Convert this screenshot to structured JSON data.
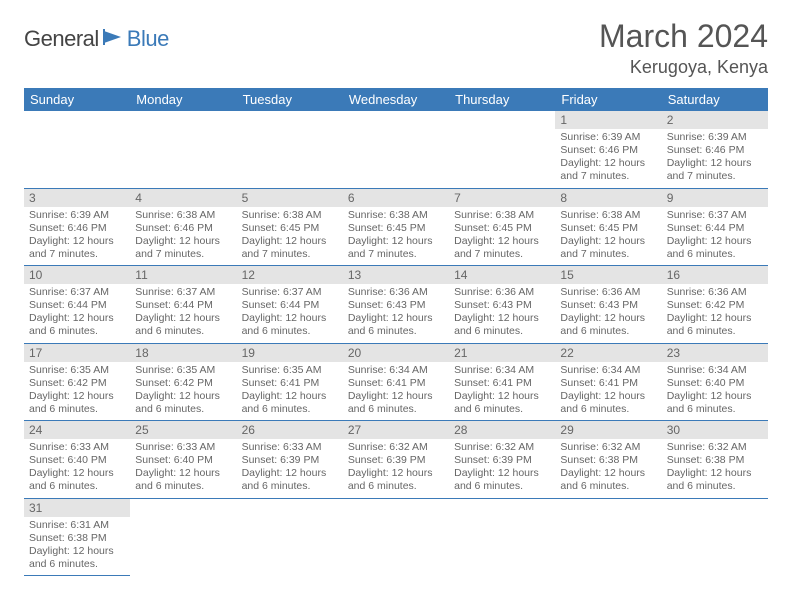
{
  "logo": {
    "part1": "General",
    "part2": "Blue"
  },
  "title": "March 2024",
  "location": "Kerugoya, Kenya",
  "colors": {
    "header_bg": "#3b7ab8",
    "header_text": "#ffffff",
    "daynum_bg": "#e4e4e4",
    "text": "#666666",
    "rule": "#3b7ab8"
  },
  "weekdays": [
    "Sunday",
    "Monday",
    "Tuesday",
    "Wednesday",
    "Thursday",
    "Friday",
    "Saturday"
  ],
  "weeks": [
    [
      null,
      null,
      null,
      null,
      null,
      {
        "n": "1",
        "sr": "6:39 AM",
        "ss": "6:46 PM",
        "dl": "12 hours and 7 minutes."
      },
      {
        "n": "2",
        "sr": "6:39 AM",
        "ss": "6:46 PM",
        "dl": "12 hours and 7 minutes."
      }
    ],
    [
      {
        "n": "3",
        "sr": "6:39 AM",
        "ss": "6:46 PM",
        "dl": "12 hours and 7 minutes."
      },
      {
        "n": "4",
        "sr": "6:38 AM",
        "ss": "6:46 PM",
        "dl": "12 hours and 7 minutes."
      },
      {
        "n": "5",
        "sr": "6:38 AM",
        "ss": "6:45 PM",
        "dl": "12 hours and 7 minutes."
      },
      {
        "n": "6",
        "sr": "6:38 AM",
        "ss": "6:45 PM",
        "dl": "12 hours and 7 minutes."
      },
      {
        "n": "7",
        "sr": "6:38 AM",
        "ss": "6:45 PM",
        "dl": "12 hours and 7 minutes."
      },
      {
        "n": "8",
        "sr": "6:38 AM",
        "ss": "6:45 PM",
        "dl": "12 hours and 7 minutes."
      },
      {
        "n": "9",
        "sr": "6:37 AM",
        "ss": "6:44 PM",
        "dl": "12 hours and 6 minutes."
      }
    ],
    [
      {
        "n": "10",
        "sr": "6:37 AM",
        "ss": "6:44 PM",
        "dl": "12 hours and 6 minutes."
      },
      {
        "n": "11",
        "sr": "6:37 AM",
        "ss": "6:44 PM",
        "dl": "12 hours and 6 minutes."
      },
      {
        "n": "12",
        "sr": "6:37 AM",
        "ss": "6:44 PM",
        "dl": "12 hours and 6 minutes."
      },
      {
        "n": "13",
        "sr": "6:36 AM",
        "ss": "6:43 PM",
        "dl": "12 hours and 6 minutes."
      },
      {
        "n": "14",
        "sr": "6:36 AM",
        "ss": "6:43 PM",
        "dl": "12 hours and 6 minutes."
      },
      {
        "n": "15",
        "sr": "6:36 AM",
        "ss": "6:43 PM",
        "dl": "12 hours and 6 minutes."
      },
      {
        "n": "16",
        "sr": "6:36 AM",
        "ss": "6:42 PM",
        "dl": "12 hours and 6 minutes."
      }
    ],
    [
      {
        "n": "17",
        "sr": "6:35 AM",
        "ss": "6:42 PM",
        "dl": "12 hours and 6 minutes."
      },
      {
        "n": "18",
        "sr": "6:35 AM",
        "ss": "6:42 PM",
        "dl": "12 hours and 6 minutes."
      },
      {
        "n": "19",
        "sr": "6:35 AM",
        "ss": "6:41 PM",
        "dl": "12 hours and 6 minutes."
      },
      {
        "n": "20",
        "sr": "6:34 AM",
        "ss": "6:41 PM",
        "dl": "12 hours and 6 minutes."
      },
      {
        "n": "21",
        "sr": "6:34 AM",
        "ss": "6:41 PM",
        "dl": "12 hours and 6 minutes."
      },
      {
        "n": "22",
        "sr": "6:34 AM",
        "ss": "6:41 PM",
        "dl": "12 hours and 6 minutes."
      },
      {
        "n": "23",
        "sr": "6:34 AM",
        "ss": "6:40 PM",
        "dl": "12 hours and 6 minutes."
      }
    ],
    [
      {
        "n": "24",
        "sr": "6:33 AM",
        "ss": "6:40 PM",
        "dl": "12 hours and 6 minutes."
      },
      {
        "n": "25",
        "sr": "6:33 AM",
        "ss": "6:40 PM",
        "dl": "12 hours and 6 minutes."
      },
      {
        "n": "26",
        "sr": "6:33 AM",
        "ss": "6:39 PM",
        "dl": "12 hours and 6 minutes."
      },
      {
        "n": "27",
        "sr": "6:32 AM",
        "ss": "6:39 PM",
        "dl": "12 hours and 6 minutes."
      },
      {
        "n": "28",
        "sr": "6:32 AM",
        "ss": "6:39 PM",
        "dl": "12 hours and 6 minutes."
      },
      {
        "n": "29",
        "sr": "6:32 AM",
        "ss": "6:38 PM",
        "dl": "12 hours and 6 minutes."
      },
      {
        "n": "30",
        "sr": "6:32 AM",
        "ss": "6:38 PM",
        "dl": "12 hours and 6 minutes."
      }
    ],
    [
      {
        "n": "31",
        "sr": "6:31 AM",
        "ss": "6:38 PM",
        "dl": "12 hours and 6 minutes."
      },
      null,
      null,
      null,
      null,
      null,
      null
    ]
  ],
  "labels": {
    "sunrise": "Sunrise:",
    "sunset": "Sunset:",
    "daylight": "Daylight:"
  }
}
